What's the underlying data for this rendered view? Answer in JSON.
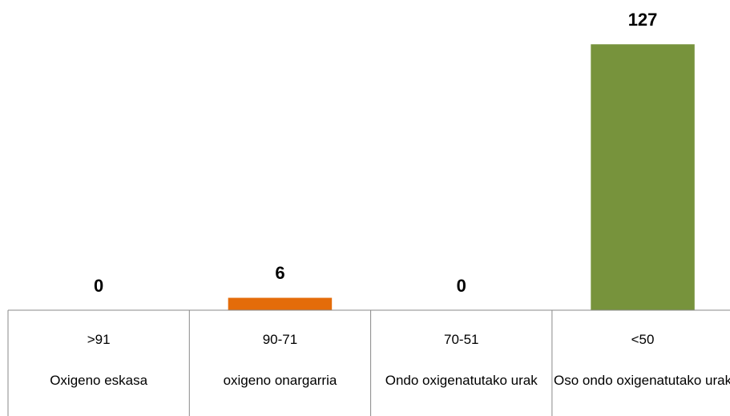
{
  "chart_data": {
    "type": "bar",
    "categories": [
      ">91",
      "90-71",
      "70-51",
      "<50"
    ],
    "descriptions": [
      "Oxigeno eskasa",
      "oxigeno onargarria",
      "Ondo oxigenatutako urak",
      "Oso ondo oxigenatutako urak"
    ],
    "values": [
      0,
      6,
      0,
      127
    ],
    "colors": [
      "#c0504d",
      "#e46c0a",
      "#f2c314",
      "#77933c"
    ]
  }
}
